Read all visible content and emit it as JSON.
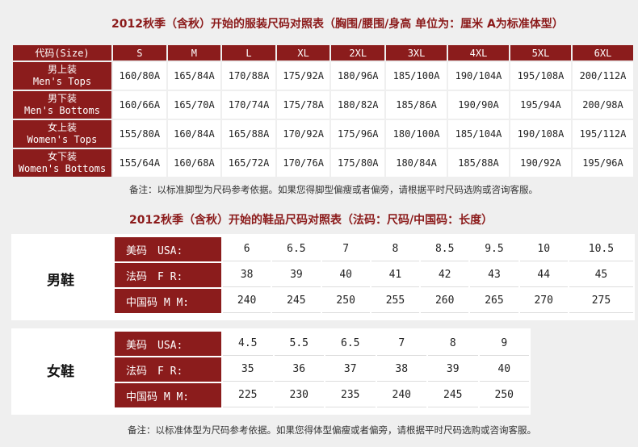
{
  "clothing": {
    "title": "2012秋季（含秋）开始的服装尺码对照表（胸围/腰围/身高 单位为：厘米 A为标准体型）",
    "header_label": "代码(Size)",
    "sizes": [
      "S",
      "M",
      "L",
      "XL",
      "2XL",
      "3XL",
      "4XL",
      "5XL",
      "6XL"
    ],
    "rows": [
      {
        "cn": "男上装",
        "en": "Men's Tops",
        "values": [
          "160/80A",
          "165/84A",
          "170/88A",
          "175/92A",
          "180/96A",
          "185/100A",
          "190/104A",
          "195/108A",
          "200/112A"
        ]
      },
      {
        "cn": "男下装",
        "en": "Men's Bottoms",
        "values": [
          "160/66A",
          "165/70A",
          "170/74A",
          "175/78A",
          "180/82A",
          "185/86A",
          "190/90A",
          "195/94A",
          "200/98A"
        ]
      },
      {
        "cn": "女上装",
        "en": "Women's Tops",
        "values": [
          "155/80A",
          "160/84A",
          "165/88A",
          "170/92A",
          "175/96A",
          "180/100A",
          "185/104A",
          "190/108A",
          "195/112A"
        ]
      },
      {
        "cn": "女下装",
        "en": "Women's Bottoms",
        "values": [
          "155/64A",
          "160/68A",
          "165/72A",
          "170/76A",
          "175/80A",
          "180/84A",
          "185/88A",
          "190/92A",
          "195/96A"
        ]
      }
    ],
    "note": "备注：以标准脚型为尺码参考依据。如果您得脚型偏瘦或者偏旁，请根据平时尺码选购或咨询客服。"
  },
  "shoes": {
    "title": "2012秋季（含秋）开始的鞋品尺码对照表（法码：尺码/中国码：长度）",
    "men": {
      "label": "男鞋",
      "rows": [
        {
          "label": "美码　USA:",
          "values": [
            "6",
            "6.5",
            "7",
            "8",
            "8.5",
            "9.5",
            "10",
            "10.5"
          ]
        },
        {
          "label": "法码　F R:",
          "values": [
            "38",
            "39",
            "40",
            "41",
            "42",
            "43",
            "44",
            "45"
          ]
        },
        {
          "label": "中国码 M M:",
          "values": [
            "240",
            "245",
            "250",
            "255",
            "260",
            "265",
            "270",
            "275"
          ]
        }
      ]
    },
    "women": {
      "label": "女鞋",
      "rows": [
        {
          "label": "美码　USA:",
          "values": [
            "4.5",
            "5.5",
            "6.5",
            "7",
            "8",
            "9"
          ]
        },
        {
          "label": "法码　F R:",
          "values": [
            "35",
            "36",
            "37",
            "38",
            "39",
            "40"
          ]
        },
        {
          "label": "中国码 M M:",
          "values": [
            "225",
            "230",
            "235",
            "240",
            "245",
            "250"
          ]
        }
      ]
    },
    "note": "备注：以标准体型为尺码参考依据。如果您得体型偏瘦或者偏旁，请根据平时尺码选购或咨询客服。"
  }
}
